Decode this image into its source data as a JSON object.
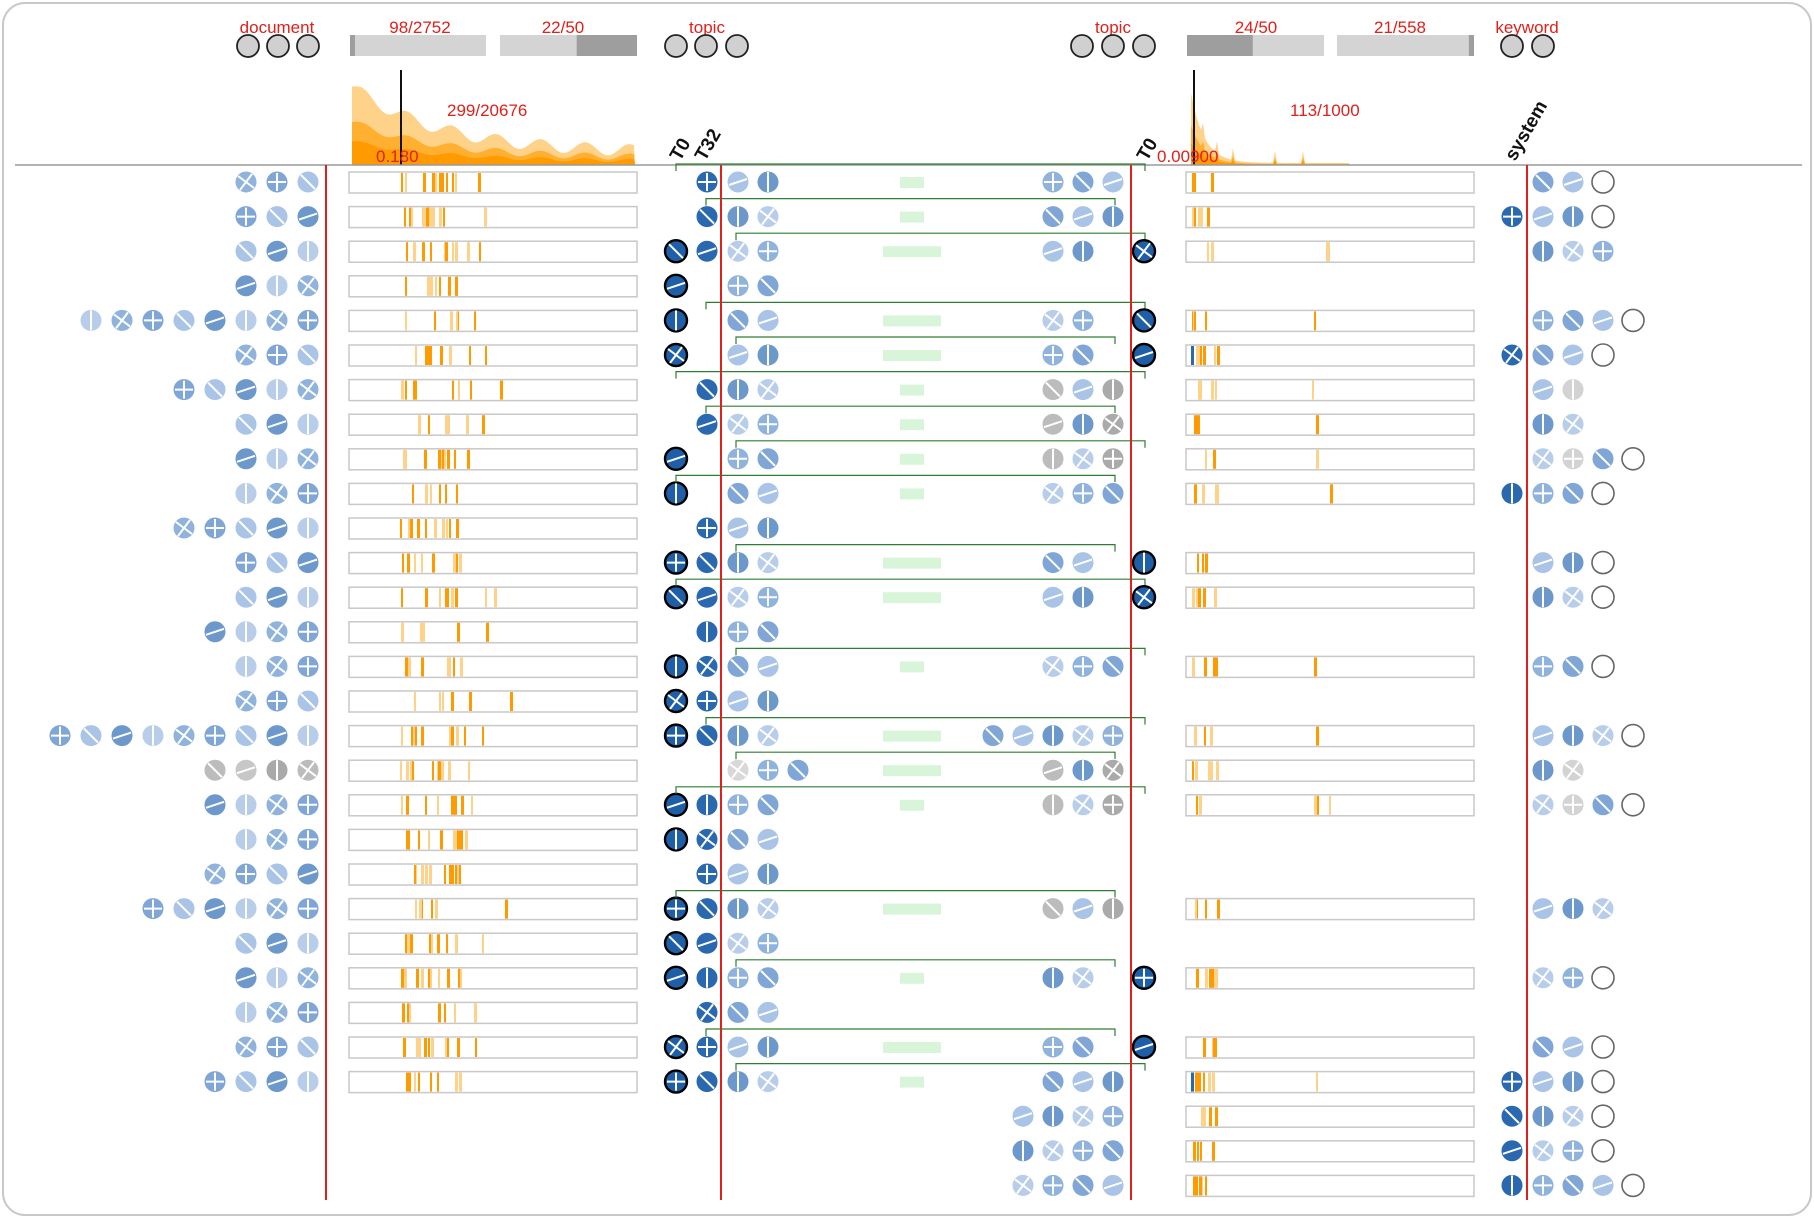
{
  "colors": {
    "accent_red": "#e0201b",
    "orange_light": "#ffd28a",
    "orange_mid": "#ffb030",
    "orange_dark": "#ff9a00",
    "blue_fill": "#8fb3dc",
    "blue_dark": "#1f5fa8",
    "grey_fill": "#bcbcbc",
    "link_green": "#2e7d32",
    "bar_green": "#d9f5d9",
    "frame": "#c8c8c8"
  },
  "header": {
    "document_label": "document",
    "doc_count_label": "98/2752",
    "doc_topic_label": "22/50",
    "topic_left_label": "topic",
    "topic_right_label": "topic",
    "kw_topic_label": "24/50",
    "kw_count_label": "21/558",
    "keyword_label": "keyword",
    "dist_left_count": "299/20676",
    "dist_left_threshold": "0.180",
    "dist_right_count": "113/1000",
    "dist_right_threshold": "0.00900",
    "t0_left": "T0",
    "t32_left": "T32",
    "t0_right": "T0",
    "system_label": "system"
  },
  "chart_data": {
    "type": "table",
    "row_count": 30,
    "rows_with_document_group": 27,
    "rows_with_right_topic_group": 25,
    "header_bars": [
      {
        "label": "98/2752",
        "value": 98,
        "total": 2752
      },
      {
        "label": "22/50",
        "value": 22,
        "total": 50
      },
      {
        "label": "24/50",
        "value": 24,
        "total": 50
      },
      {
        "label": "21/558",
        "value": 21,
        "total": 558
      }
    ],
    "distributions": [
      {
        "label": "299/20676",
        "selected": 299,
        "total": 20676,
        "threshold": 0.18
      },
      {
        "label": "113/1000",
        "selected": 113,
        "total": 1000,
        "threshold": 0.009
      }
    ]
  }
}
